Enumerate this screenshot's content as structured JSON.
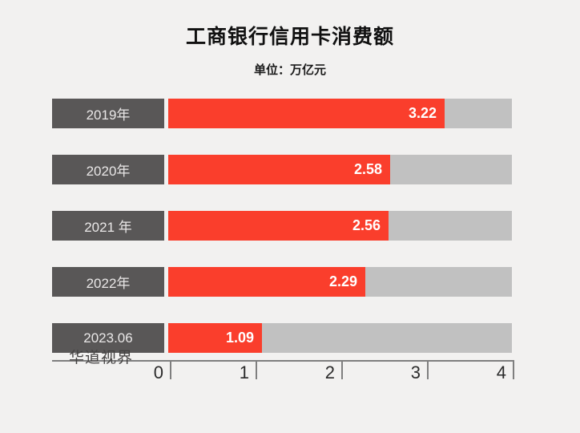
{
  "title": "工商银行信用卡消费额",
  "subtitle": "单位：万亿元",
  "watermark": "华道视界",
  "colors": {
    "bar_red": "#fa3e2c",
    "track_gray": "#c1c1c1",
    "category_box": "#595757",
    "background": "#f2f1f0",
    "axis": "#7f7f7f"
  },
  "chart_data": {
    "type": "bar",
    "orientation": "horizontal",
    "title": "工商银行信用卡消费额",
    "unit_label": "单位：万亿元",
    "categories": [
      "2019年",
      "2020年",
      "2021 年",
      "2022年",
      "2023.06"
    ],
    "values": [
      3.22,
      2.58,
      2.56,
      2.29,
      1.09
    ],
    "value_labels": [
      "3.22",
      "2.58",
      "2.56",
      "2.29",
      "1.09"
    ],
    "xlabel": "",
    "ylabel": "",
    "xlim": [
      0,
      4
    ],
    "x_ticks": [
      "0",
      "1",
      "2",
      "3",
      "4"
    ],
    "grid": false,
    "legend": false
  }
}
